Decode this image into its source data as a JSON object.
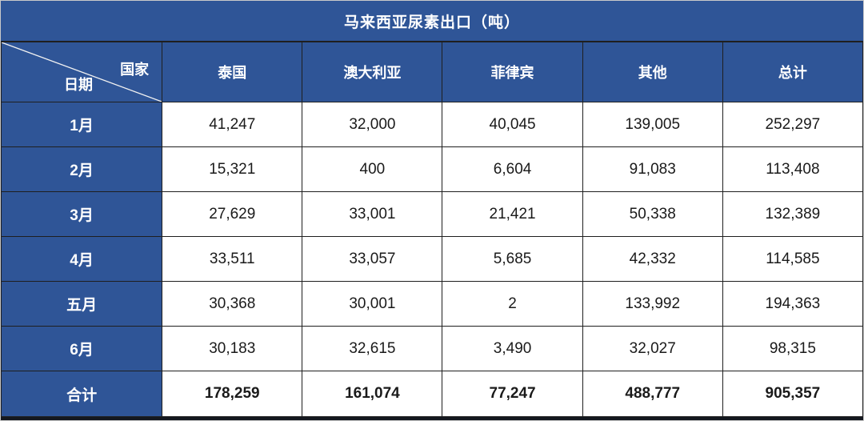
{
  "title": "马来西亚尿素出口（吨）",
  "corner": {
    "country_label": "国家",
    "date_label": "日期"
  },
  "chart_data": {
    "type": "table",
    "title": "马来西亚尿素出口（吨）",
    "corner_top_right": "国家",
    "corner_bottom_left": "日期",
    "columns": [
      "泰国",
      "澳大利亚",
      "菲律宾",
      "其他",
      "总计"
    ],
    "rows": [
      {
        "label": "1月",
        "values": [
          41247,
          32000,
          40045,
          139005,
          252297
        ]
      },
      {
        "label": "2月",
        "values": [
          15321,
          400,
          6604,
          91083,
          113408
        ]
      },
      {
        "label": "3月",
        "values": [
          27629,
          33001,
          21421,
          50338,
          132389
        ]
      },
      {
        "label": "4月",
        "values": [
          33511,
          33057,
          5685,
          42332,
          114585
        ]
      },
      {
        "label": "五月",
        "values": [
          30368,
          30001,
          2,
          133992,
          194363
        ]
      },
      {
        "label": "6月",
        "values": [
          30183,
          32615,
          3490,
          32027,
          98315
        ]
      },
      {
        "label": "合计",
        "values": [
          178259,
          161074,
          77247,
          488777,
          905357
        ],
        "is_total": true
      }
    ]
  },
  "colors": {
    "header_blue": "#2f5597",
    "grid_dark": "#1f1f1f",
    "bottom_bar": "#14181f",
    "data_text": "#1a1a1a",
    "page_edge": "#c9c9c9"
  }
}
